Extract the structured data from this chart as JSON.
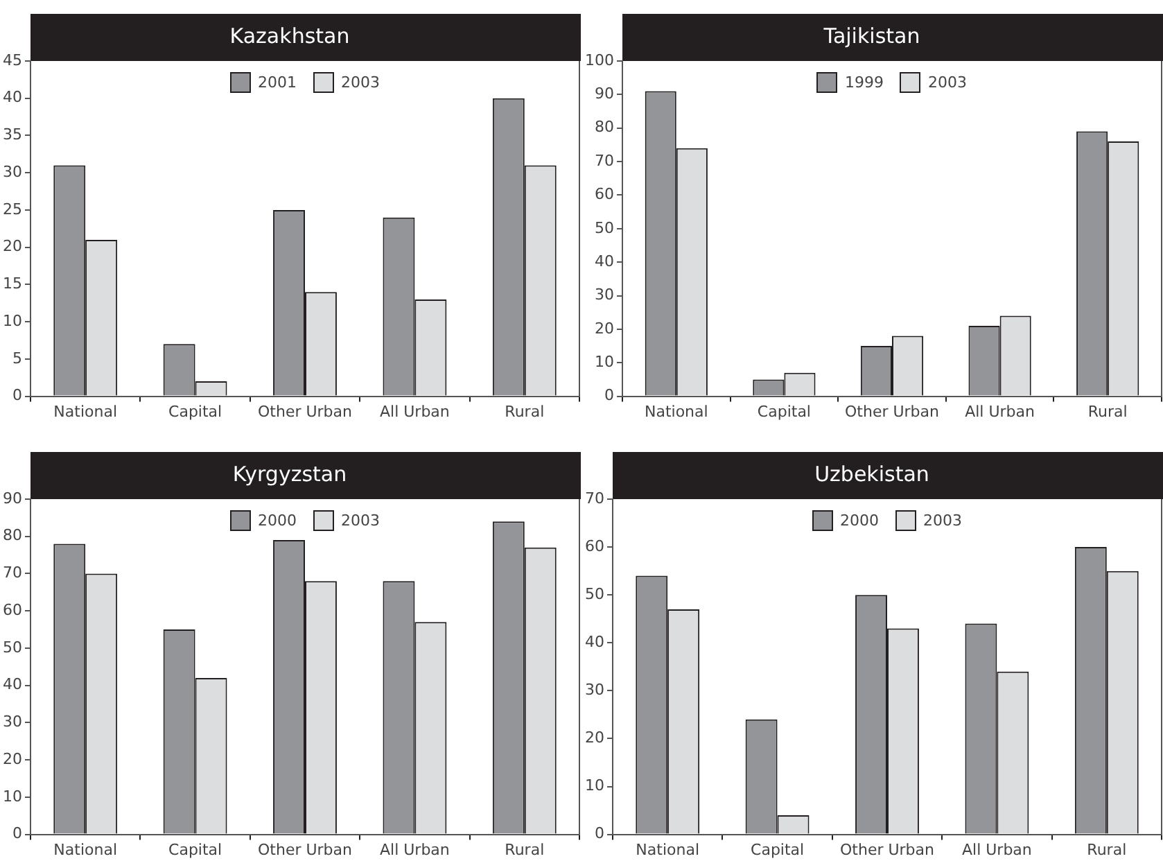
{
  "chart_data": [
    {
      "type": "bar",
      "title": "Kazakhstan",
      "categories": [
        "National",
        "Capital",
        "Other Urban",
        "All Urban",
        "Rural"
      ],
      "series": [
        {
          "name": "2001",
          "color": "#939598",
          "values": [
            31,
            7,
            25,
            24,
            40
          ]
        },
        {
          "name": "2003",
          "color": "#dcdddf",
          "values": [
            21,
            2,
            14,
            13,
            31
          ]
        }
      ],
      "ylim": [
        0,
        45
      ],
      "yticks": [
        0,
        5,
        10,
        15,
        20,
        25,
        30,
        35,
        40,
        45
      ],
      "legend": "top",
      "grid": false
    },
    {
      "type": "bar",
      "title": "Tajikistan",
      "categories": [
        "National",
        "Capital",
        "Other Urban",
        "All Urban",
        "Rural"
      ],
      "series": [
        {
          "name": "1999",
          "color": "#939598",
          "values": [
            91,
            5,
            15,
            21,
            79
          ]
        },
        {
          "name": "2003",
          "color": "#dcdddf",
          "values": [
            74,
            7,
            18,
            24,
            76
          ]
        }
      ],
      "ylim": [
        0,
        100
      ],
      "yticks": [
        0,
        10,
        20,
        30,
        40,
        50,
        60,
        70,
        80,
        90,
        100
      ],
      "legend": "top",
      "grid": false
    },
    {
      "type": "bar",
      "title": "Kyrgyzstan",
      "categories": [
        "National",
        "Capital",
        "Other Urban",
        "All Urban",
        "Rural"
      ],
      "series": [
        {
          "name": "2000",
          "color": "#939598",
          "values": [
            78,
            55,
            79,
            68,
            84
          ]
        },
        {
          "name": "2003",
          "color": "#dcdddf",
          "values": [
            70,
            42,
            68,
            57,
            77
          ]
        }
      ],
      "ylim": [
        0,
        90
      ],
      "yticks": [
        0,
        10,
        20,
        30,
        40,
        50,
        60,
        70,
        80,
        90
      ],
      "legend": "top",
      "grid": false
    },
    {
      "type": "bar",
      "title": "Uzbekistan",
      "categories": [
        "National",
        "Capital",
        "Other Urban",
        "All Urban",
        "Rural"
      ],
      "series": [
        {
          "name": "2000",
          "color": "#939598",
          "values": [
            54,
            24,
            50,
            44,
            60
          ]
        },
        {
          "name": "2003",
          "color": "#dcdddf",
          "values": [
            47,
            4,
            43,
            34,
            55
          ]
        }
      ],
      "ylim": [
        0,
        70
      ],
      "yticks": [
        0,
        10,
        20,
        30,
        40,
        50,
        60,
        70
      ],
      "legend": "top",
      "grid": false
    }
  ]
}
